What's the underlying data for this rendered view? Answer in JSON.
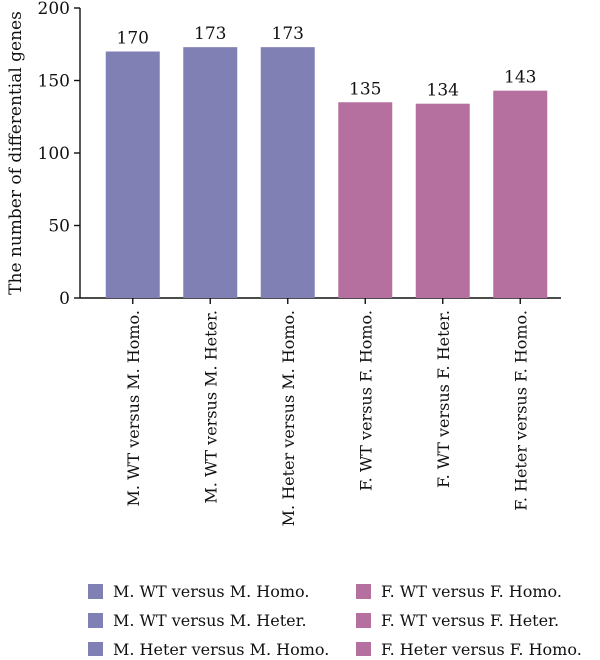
{
  "chart_data": {
    "type": "bar",
    "title": "",
    "xlabel": "",
    "ylabel": "The number of differential genes",
    "ylim": [
      0,
      200
    ],
    "yticks": [
      0,
      50,
      100,
      150,
      200
    ],
    "grid": false,
    "legend_placement": "bottom",
    "categories": [
      "M. WT versus M. Homo.",
      "M. WT versus M. Heter.",
      "M. Heter versus M. Homo.",
      "F. WT versus F. Homo.",
      "F. WT versus F. Heter.",
      "F. Heter versus F. Homo."
    ],
    "values": [
      170,
      173,
      173,
      135,
      134,
      143
    ],
    "value_labels": [
      "170",
      "173",
      "173",
      "135",
      "134",
      "143"
    ],
    "bar_colors": [
      "#8080b4",
      "#8080b4",
      "#8080b4",
      "#b670a0",
      "#b670a0",
      "#b670a0"
    ]
  },
  "legend": {
    "items": [
      {
        "label": "M. WT versus M. Homo.",
        "color": "#8080b4"
      },
      {
        "label": "M. WT versus M. Heter.",
        "color": "#8080b4"
      },
      {
        "label": "M. Heter versus M. Homo.",
        "color": "#8080b4"
      },
      {
        "label": "F. WT versus F. Homo.",
        "color": "#b670a0"
      },
      {
        "label": "F. WT versus F. Heter.",
        "color": "#b670a0"
      },
      {
        "label": "F. Heter versus F. Homo.",
        "color": "#b670a0"
      }
    ]
  }
}
